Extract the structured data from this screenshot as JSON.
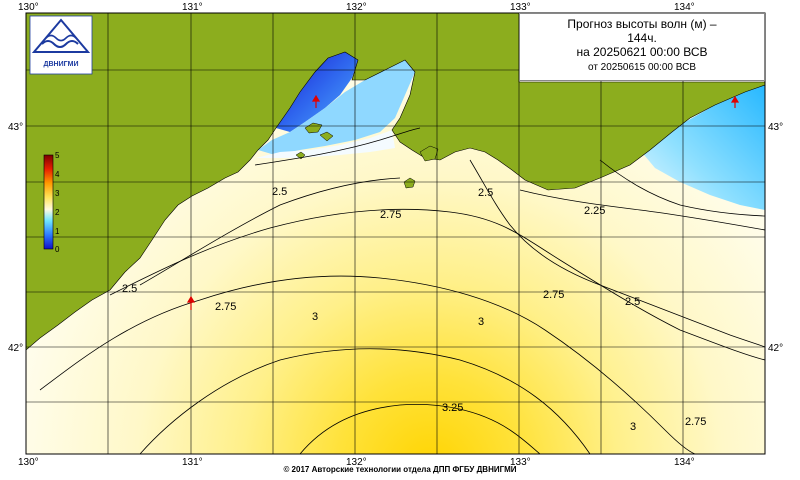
{
  "title": {
    "line1": "Прогноз высоты волн (м) –",
    "line2": "144ч.",
    "line3": "на 20250621 00:00 ВСВ",
    "line4": "от 20250615 00:00 ВСВ"
  },
  "logo": {
    "text": "ДВНИГМИ",
    "icon": "wave-emblem-icon"
  },
  "axes": {
    "lon_ticks": [
      "130°",
      "131°",
      "132°",
      "133°",
      "134°"
    ],
    "lat_ticks": [
      "43°",
      "42°"
    ]
  },
  "colorbar": {
    "ticks": [
      "5",
      "4",
      "3",
      "2",
      "1",
      "0"
    ],
    "range": [
      0,
      5
    ]
  },
  "contour_labels": [
    "2.5",
    "2.75",
    "2.5",
    "2.25",
    "2.5",
    "2.75",
    "2.5",
    "2.75",
    "3",
    "3",
    "3.25",
    "3",
    "2.75"
  ],
  "copyright": "© 2017 Авторские технологии отдела ДПП ФГБУ ДВНИГМИ",
  "colors": {
    "land": "#8cad1e",
    "sea_low": "#fffbe0",
    "sea_mid": "#fff3a6",
    "sea_high": "#ffd800",
    "shallow_cyan": "#27c1ff",
    "deep_blue": "#1e2edc"
  }
}
